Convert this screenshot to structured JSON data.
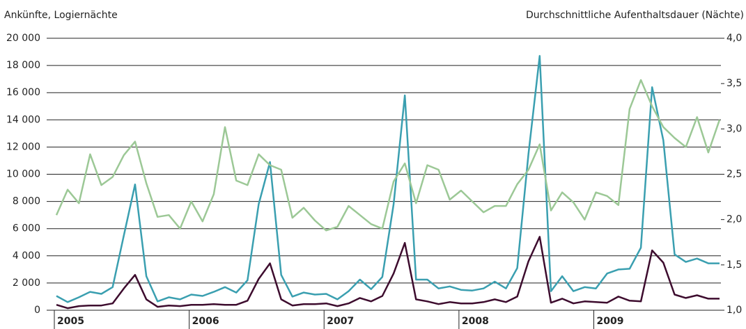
{
  "chart_data": {
    "type": "line",
    "y_label": "Ankünfte, Logiernächte",
    "y2_label": "Durchschnittliche Aufenthaltsdauer (Nächte)",
    "categories": [
      "2005",
      null,
      null,
      null,
      null,
      null,
      null,
      null,
      null,
      null,
      null,
      null,
      "2006",
      null,
      null,
      null,
      null,
      null,
      null,
      null,
      null,
      null,
      null,
      null,
      "2007",
      null,
      null,
      null,
      null,
      null,
      null,
      null,
      null,
      null,
      null,
      null,
      "2008",
      null,
      null,
      null,
      null,
      null,
      null,
      null,
      null,
      null,
      null,
      null,
      "2009",
      null,
      null,
      null,
      null,
      null,
      null,
      null,
      null,
      null,
      null,
      null
    ],
    "series": [
      {
        "color": "#3a9fb0",
        "values": [
          1050,
          600,
          950,
          1350,
          1200,
          1700,
          5500,
          9250,
          2500,
          650,
          950,
          800,
          1150,
          1050,
          1350,
          1700,
          1300,
          2200,
          7800,
          10900,
          2600,
          1000,
          1300,
          1150,
          1200,
          800,
          1400,
          2250,
          1550,
          2450,
          7800,
          15800,
          2250,
          2250,
          1600,
          1750,
          1500,
          1450,
          1600,
          2100,
          1600,
          3100,
          11500,
          18700,
          1400,
          2500,
          1400,
          1700,
          1600,
          2700,
          3000,
          3050,
          4600,
          16400,
          12500,
          4100,
          3550,
          3800,
          3450,
          3450
        ]
      },
      {
        "color": "#3d0c2e",
        "values": [
          400,
          150,
          300,
          350,
          350,
          500,
          1600,
          2600,
          800,
          250,
          350,
          300,
          400,
          400,
          450,
          400,
          400,
          700,
          2300,
          3450,
          800,
          350,
          450,
          450,
          500,
          300,
          500,
          900,
          650,
          1050,
          2700,
          4950,
          800,
          650,
          450,
          600,
          500,
          500,
          600,
          800,
          600,
          1000,
          3600,
          5400,
          550,
          850,
          500,
          650,
          600,
          550,
          1000,
          700,
          650,
          4400,
          3500,
          1150,
          900,
          1100,
          850,
          850
        ]
      },
      {
        "color": "#9cc896",
        "axis": "y2",
        "values": [
          2.05,
          2.33,
          2.18,
          2.72,
          2.38,
          2.47,
          2.71,
          2.86,
          2.4,
          2.03,
          2.05,
          1.9,
          2.2,
          1.98,
          2.28,
          3.02,
          2.43,
          2.38,
          2.72,
          2.6,
          2.55,
          2.02,
          2.13,
          1.99,
          1.88,
          1.92,
          2.15,
          2.05,
          1.95,
          1.9,
          2.42,
          2.62,
          2.18,
          2.6,
          2.55,
          2.22,
          2.32,
          2.2,
          2.08,
          2.15,
          2.15,
          2.39,
          2.55,
          2.83,
          2.1,
          2.3,
          2.19,
          2.0,
          2.3,
          2.26,
          2.16,
          3.22,
          3.54,
          3.25,
          3.02,
          2.9,
          2.8,
          3.13,
          2.74,
          3.1
        ]
      }
    ],
    "ylim": [
      0,
      20000
    ],
    "yticks": [
      0,
      {
        "value": 2000,
        "label": "2 000"
      },
      {
        "value": 4000,
        "label": "4 000"
      },
      {
        "value": 6000,
        "label": "6 000"
      },
      {
        "value": 8000,
        "label": "8 000"
      },
      {
        "value": 10000,
        "label": "10 000"
      },
      {
        "value": 12000,
        "label": "12 000"
      },
      {
        "value": 14000,
        "label": "14 000"
      },
      {
        "value": 16000,
        "label": "16 000"
      },
      {
        "value": 18000,
        "label": "18 000"
      },
      {
        "value": 20000,
        "label": "20 000"
      }
    ],
    "y2lim": [
      1.0,
      4.0
    ],
    "y2ticks": [
      {
        "value": 1.0,
        "label": "1,0"
      },
      {
        "value": 1.5,
        "label": "1,5"
      },
      {
        "value": 2.0,
        "label": "2,0"
      },
      {
        "value": 2.5,
        "label": "2,5"
      },
      {
        "value": 3.0,
        "label": "3,0"
      },
      {
        "value": 3.5,
        "label": "3,5"
      },
      {
        "value": 4.0,
        "label": "4,0"
      }
    ],
    "grid": true
  }
}
